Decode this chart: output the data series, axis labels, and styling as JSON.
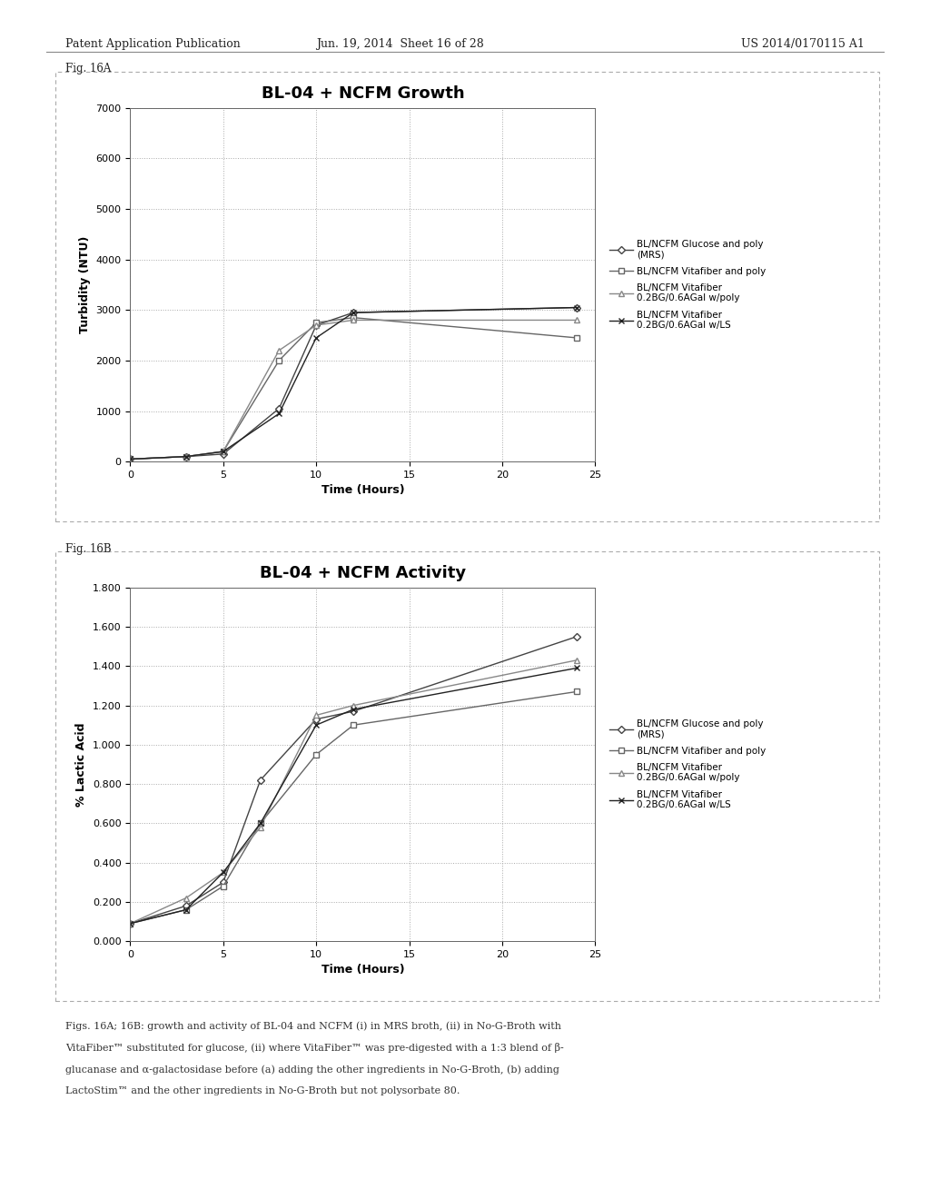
{
  "fig16A": {
    "title": "BL-04 + NCFM Growth",
    "xlabel": "Time (Hours)",
    "ylabel": "Turbidity (NTU)",
    "ylim": [
      0,
      7000
    ],
    "yticks": [
      0,
      1000,
      2000,
      3000,
      4000,
      5000,
      6000,
      7000
    ],
    "xlim": [
      0,
      25
    ],
    "xticks": [
      0,
      5,
      10,
      15,
      20,
      25
    ],
    "series": [
      {
        "label": "BL/NCFM Glucose and poly\n(MRS)",
        "x": [
          0,
          3,
          5,
          8,
          10,
          12,
          24
        ],
        "y": [
          50,
          100,
          150,
          1050,
          2700,
          2950,
          3050
        ],
        "marker": "D",
        "color": "#444444"
      },
      {
        "label": "BL/NCFM Vitafiber and poly",
        "x": [
          0,
          3,
          5,
          8,
          10,
          12,
          24
        ],
        "y": [
          50,
          100,
          200,
          2000,
          2750,
          2850,
          2450
        ],
        "marker": "s",
        "color": "#666666"
      },
      {
        "label": "BL/NCFM Vitafiber\n0.2BG/0.6AGal w/poly",
        "x": [
          0,
          3,
          5,
          8,
          10,
          12,
          24
        ],
        "y": [
          50,
          100,
          200,
          2200,
          2700,
          2800,
          2800
        ],
        "marker": "^",
        "color": "#888888"
      },
      {
        "label": "BL/NCFM Vitafiber\n0.2BG/0.6AGal w/LS",
        "x": [
          0,
          3,
          5,
          8,
          10,
          12,
          24
        ],
        "y": [
          50,
          100,
          200,
          950,
          2450,
          2950,
          3050
        ],
        "marker": "x",
        "color": "#222222"
      }
    ]
  },
  "fig16B": {
    "title": "BL-04 + NCFM Activity",
    "xlabel": "Time (Hours)",
    "ylabel": "% Lactic Acid",
    "ylim": [
      0.0,
      1.8
    ],
    "yticks": [
      0.0,
      0.2,
      0.4,
      0.6,
      0.8,
      1.0,
      1.2,
      1.4,
      1.6,
      1.8
    ],
    "xlim": [
      0,
      25
    ],
    "xticks": [
      0,
      5,
      10,
      15,
      20,
      25
    ],
    "series": [
      {
        "label": "BL/NCFM Glucose and poly\n(MRS)",
        "x": [
          0,
          3,
          5,
          7,
          10,
          12,
          24
        ],
        "y": [
          0.09,
          0.18,
          0.3,
          0.82,
          1.13,
          1.17,
          1.55
        ],
        "marker": "D",
        "color": "#444444"
      },
      {
        "label": "BL/NCFM Vitafiber and poly",
        "x": [
          0,
          3,
          5,
          7,
          10,
          12,
          24
        ],
        "y": [
          0.09,
          0.16,
          0.28,
          0.6,
          0.95,
          1.1,
          1.27
        ],
        "marker": "s",
        "color": "#666666"
      },
      {
        "label": "BL/NCFM Vitafiber\n0.2BG/0.6AGal w/poly",
        "x": [
          0,
          3,
          5,
          7,
          10,
          12,
          24
        ],
        "y": [
          0.09,
          0.22,
          0.35,
          0.58,
          1.15,
          1.2,
          1.43
        ],
        "marker": "^",
        "color": "#888888"
      },
      {
        "label": "BL/NCFM Vitafiber\n0.2BG/0.6AGal w/LS",
        "x": [
          0,
          3,
          5,
          7,
          10,
          12,
          24
        ],
        "y": [
          0.09,
          0.16,
          0.35,
          0.6,
          1.1,
          1.18,
          1.39
        ],
        "marker": "x",
        "color": "#222222"
      }
    ]
  },
  "header_left": "Patent Application Publication",
  "header_mid": "Jun. 19, 2014  Sheet 16 of 28",
  "header_right": "US 2014/0170115 A1",
  "fig16A_label": "Fig. 16A",
  "fig16B_label": "Fig. 16B",
  "caption_line1": "Figs. 16A; 16B: growth and activity of BL-04 and NCFM (i) in MRS broth, (ii) in No-G-Broth with",
  "caption_line2": "VitaFiber™ substituted for glucose, (ii) where VitaFiber™ was pre-digested with a 1:3 blend of β-",
  "caption_line3": "glucanase and α-galactosidase before (a) adding the other ingredients in No-G-Broth, (b) adding",
  "caption_line4": "LactoStim™ and the other ingredients in No-G-Broth but not polysorbate 80."
}
